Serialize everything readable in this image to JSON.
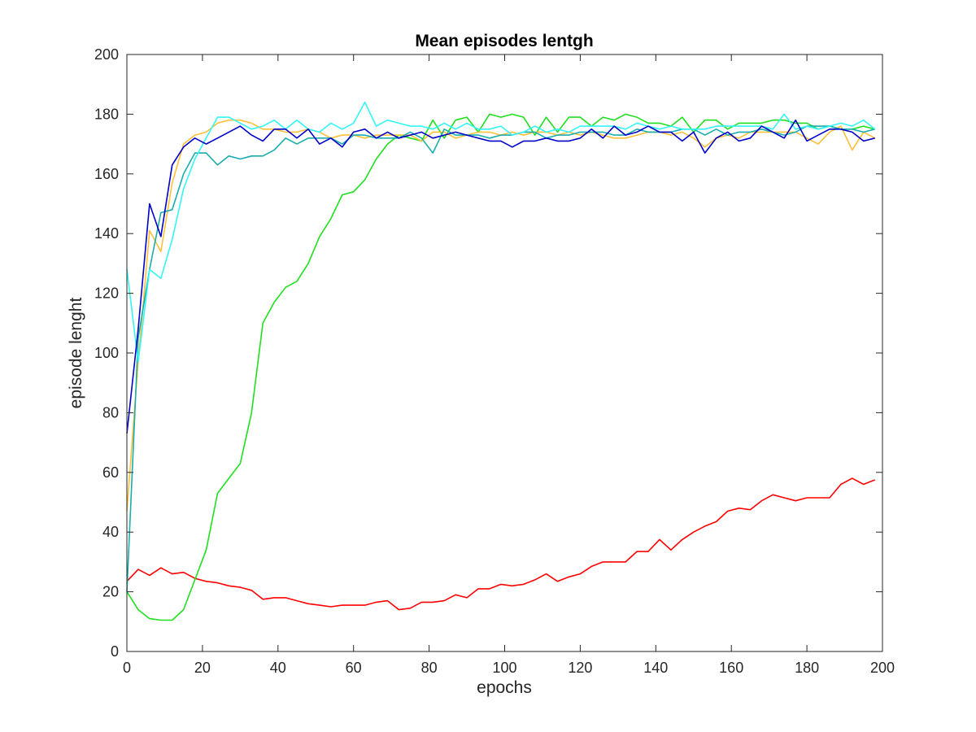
{
  "chart_data": {
    "type": "line",
    "title": "Mean episodes lentgh",
    "xlabel": "epochs",
    "ylabel": "episode lenght",
    "xlim": [
      0,
      200
    ],
    "ylim": [
      0,
      200
    ],
    "xticks": [
      0,
      20,
      40,
      60,
      80,
      100,
      120,
      140,
      160,
      180,
      200
    ],
    "yticks": [
      0,
      20,
      40,
      60,
      80,
      100,
      120,
      140,
      160,
      180,
      200
    ],
    "grid": false,
    "legend": "none",
    "series": [
      {
        "color": "#ff0000",
        "x": [
          0,
          3,
          6,
          9,
          12,
          15,
          18,
          21,
          24,
          27,
          30,
          33,
          36,
          39,
          42,
          45,
          48,
          51,
          54,
          57,
          60,
          63,
          66,
          69,
          72,
          75,
          78,
          81,
          84,
          87,
          90,
          93,
          96,
          99,
          102,
          105,
          108,
          111,
          114,
          117,
          120,
          123,
          126,
          129,
          132,
          135,
          138,
          141,
          144,
          147,
          150,
          153,
          156,
          159,
          162,
          165,
          168,
          171,
          174,
          177,
          180,
          183,
          186,
          189,
          192,
          195,
          198
        ],
        "y": [
          23.5,
          27.5,
          25.5,
          28,
          26,
          26.5,
          24.5,
          23.5,
          23,
          22,
          21.5,
          20.5,
          17.5,
          18,
          18,
          17,
          16,
          15.5,
          15,
          15.5,
          15.5,
          15.5,
          16.5,
          17,
          14,
          14.5,
          16.5,
          16.5,
          17,
          19,
          18,
          21,
          21,
          22.5,
          22,
          22.5,
          24,
          26,
          23.5,
          25,
          26,
          28.5,
          30,
          30,
          30,
          33.5,
          33.5,
          37.5,
          34,
          37.5,
          40,
          42,
          43.5,
          47,
          48,
          47.5,
          50.5,
          52.5,
          51.5,
          50.5,
          51.5,
          51.5,
          51.5,
          56,
          58,
          56,
          57.5
        ]
      },
      {
        "color": "#1fe01f",
        "x": [
          0,
          3,
          6,
          9,
          12,
          15,
          18,
          21,
          24,
          27,
          30,
          33,
          36,
          39,
          42,
          45,
          48,
          51,
          54,
          57,
          60,
          63,
          66,
          69,
          72,
          75,
          78,
          81,
          84,
          87,
          90,
          93,
          96,
          99,
          102,
          105,
          108,
          111,
          114,
          117,
          120,
          123,
          126,
          129,
          132,
          135,
          138,
          141,
          144,
          147,
          150,
          153,
          156,
          159,
          162,
          165,
          168,
          171,
          174,
          177,
          180,
          183,
          186,
          189,
          192,
          195,
          198
        ],
        "y": [
          20,
          14,
          11,
          10.5,
          10.5,
          14,
          24,
          34,
          53,
          58,
          63,
          80,
          110,
          117,
          122,
          124,
          130,
          139,
          145,
          153,
          154,
          158,
          165,
          170,
          173,
          172,
          171,
          178,
          172,
          178,
          179,
          174,
          180,
          179,
          180,
          179,
          173,
          179,
          174,
          179,
          179,
          176,
          179,
          178,
          180,
          179,
          177,
          177,
          176,
          179,
          174,
          178,
          178,
          175,
          177,
          177,
          177,
          178,
          178,
          177,
          177,
          175,
          176,
          175,
          175,
          176,
          175
        ]
      },
      {
        "color": "#ffc038",
        "x": [
          0,
          3,
          6,
          9,
          12,
          15,
          18,
          21,
          24,
          27,
          30,
          33,
          36,
          39,
          42,
          45,
          48,
          51,
          54,
          57,
          60,
          63,
          66,
          69,
          72,
          75,
          78,
          81,
          84,
          87,
          90,
          93,
          96,
          99,
          102,
          105,
          108,
          111,
          114,
          117,
          120,
          123,
          126,
          129,
          132,
          135,
          138,
          141,
          144,
          147,
          150,
          153,
          156,
          159,
          162,
          165,
          168,
          171,
          174,
          177,
          180,
          183,
          186,
          189,
          192,
          195,
          198
        ],
        "y": [
          47,
          97,
          141,
          134,
          157,
          170,
          173,
          174,
          177,
          178,
          178,
          177,
          175,
          175,
          174,
          174,
          175,
          174,
          172,
          173,
          173,
          172,
          173,
          173,
          173,
          173,
          171,
          174,
          174,
          172,
          173,
          174,
          174,
          173,
          174,
          173,
          174,
          174,
          173,
          174,
          173,
          174,
          173,
          172,
          172,
          173,
          174,
          174,
          173,
          174,
          172,
          169,
          172,
          173,
          172,
          174,
          174,
          174,
          174,
          174,
          172,
          170,
          174,
          176,
          168,
          174,
          172
        ]
      },
      {
        "color": "#1aadad",
        "x": [
          0,
          3,
          6,
          9,
          12,
          15,
          18,
          21,
          24,
          27,
          30,
          33,
          36,
          39,
          42,
          45,
          48,
          51,
          54,
          57,
          60,
          63,
          66,
          69,
          72,
          75,
          78,
          81,
          84,
          87,
          90,
          93,
          96,
          99,
          102,
          105,
          108,
          111,
          114,
          117,
          120,
          123,
          126,
          129,
          132,
          135,
          138,
          141,
          144,
          147,
          150,
          153,
          156,
          159,
          162,
          165,
          168,
          171,
          174,
          177,
          180,
          183,
          186,
          189,
          192,
          195,
          198
        ],
        "y": [
          20,
          105,
          128,
          147,
          148,
          160,
          167,
          167,
          163,
          166,
          165,
          166,
          166,
          168,
          172,
          170,
          172,
          172,
          172,
          170,
          173,
          173,
          172,
          172,
          172,
          174,
          172,
          167,
          175,
          173,
          173,
          173,
          172,
          173,
          173,
          174,
          174,
          172,
          173,
          173,
          174,
          174,
          174,
          173,
          173,
          175,
          174,
          174,
          174,
          175,
          175,
          173,
          175,
          173,
          174,
          174,
          175,
          174,
          173,
          174,
          176,
          176,
          176,
          175,
          175,
          174,
          175
        ]
      },
      {
        "color": "#33f5f5",
        "x": [
          0,
          3,
          6,
          9,
          12,
          15,
          18,
          21,
          24,
          27,
          30,
          33,
          36,
          39,
          42,
          45,
          48,
          51,
          54,
          57,
          60,
          63,
          66,
          69,
          72,
          75,
          78,
          81,
          84,
          87,
          90,
          93,
          96,
          99,
          102,
          105,
          108,
          111,
          114,
          117,
          120,
          123,
          126,
          129,
          132,
          135,
          138,
          141,
          144,
          147,
          150,
          153,
          156,
          159,
          162,
          165,
          168,
          171,
          174,
          177,
          180,
          183,
          186,
          189,
          192,
          195,
          198
        ],
        "y": [
          128,
          97,
          128,
          125,
          138,
          155,
          165,
          172,
          179,
          179,
          177,
          175,
          176,
          178,
          175,
          178,
          175,
          174,
          177,
          175,
          177,
          184,
          176,
          178,
          177,
          176,
          176,
          175,
          177,
          175,
          177,
          175,
          175,
          176,
          173,
          174,
          176,
          174,
          175,
          174,
          176,
          176,
          176,
          176,
          175,
          177,
          176,
          175,
          176,
          175,
          175,
          175,
          176,
          176,
          176,
          176,
          176,
          175,
          180,
          175,
          176,
          175,
          176,
          177,
          176,
          178,
          175
        ]
      },
      {
        "color": "#0000c8",
        "x": [
          0,
          3,
          6,
          9,
          12,
          15,
          18,
          21,
          24,
          27,
          30,
          33,
          36,
          39,
          42,
          45,
          48,
          51,
          54,
          57,
          60,
          63,
          66,
          69,
          72,
          75,
          78,
          81,
          84,
          87,
          90,
          93,
          96,
          99,
          102,
          105,
          108,
          111,
          114,
          117,
          120,
          123,
          126,
          129,
          132,
          135,
          138,
          141,
          144,
          147,
          150,
          153,
          156,
          159,
          162,
          165,
          168,
          171,
          174,
          177,
          180,
          183,
          186,
          189,
          192,
          195,
          198
        ],
        "y": [
          73,
          108,
          150,
          139,
          163,
          169,
          172,
          170,
          172,
          174,
          176,
          173,
          171,
          175,
          175,
          172,
          175,
          170,
          172,
          169,
          174,
          175,
          172,
          174,
          172,
          173,
          174,
          172,
          173,
          174,
          173,
          172,
          171,
          171,
          169,
          171,
          171,
          172,
          171,
          171,
          172,
          175,
          172,
          176,
          173,
          174,
          176,
          174,
          174,
          171,
          174,
          167,
          172,
          174,
          171,
          172,
          176,
          174,
          172,
          178,
          171,
          173,
          175,
          175,
          174,
          171,
          172
        ]
      }
    ]
  }
}
